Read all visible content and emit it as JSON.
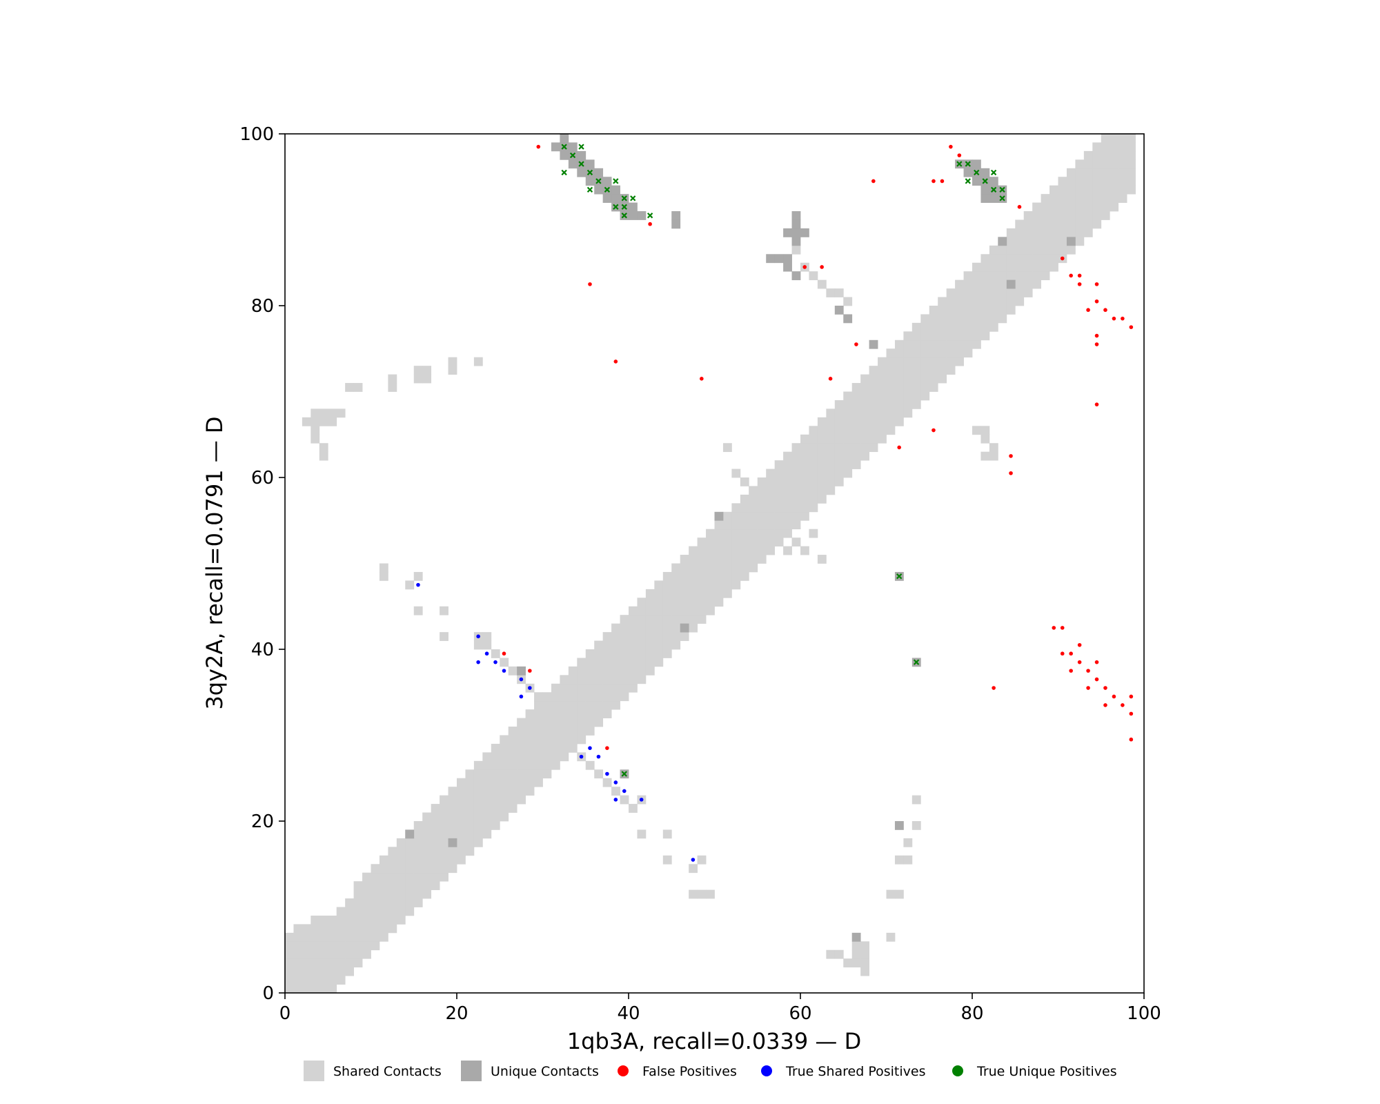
{
  "chart_data": {
    "type": "heatmap",
    "xlabel": "1qb3A, recall=0.0339 — D",
    "ylabel": "3qy2A, recall=0.0791 — D",
    "xlim": [
      0,
      100
    ],
    "ylim": [
      0,
      100
    ],
    "x_ticks": [
      "0",
      "20",
      "40",
      "60",
      "80",
      "100"
    ],
    "y_ticks": [
      "0",
      "20",
      "40",
      "60",
      "80",
      "100"
    ],
    "grid": false,
    "legend_position": "bottom",
    "legend": [
      {
        "label": "Shared Contacts",
        "kind": "square",
        "color": "#d3d3d3"
      },
      {
        "label": "Unique Contacts",
        "kind": "square",
        "color": "#a9a9a9"
      },
      {
        "label": "False Positives",
        "kind": "dot",
        "color": "#ff0000"
      },
      {
        "label": "True Shared Positives",
        "kind": "dot",
        "color": "#0000ff"
      },
      {
        "label": "True Unique Positives",
        "kind": "dot",
        "color": "#008000"
      }
    ],
    "colors": {
      "shared": "#d3d3d3",
      "unique": "#a9a9a9",
      "false_positive": "#ff0000",
      "true_shared": "#0000ff",
      "true_unique": "#008000"
    },
    "diagonal_band": [
      [
        0,
        0,
        6
      ],
      [
        1,
        0,
        7
      ],
      [
        2,
        0,
        7
      ],
      [
        3,
        0,
        8
      ],
      [
        4,
        0,
        8
      ],
      [
        5,
        0,
        8
      ],
      [
        6,
        1,
        9
      ],
      [
        7,
        2,
        10
      ],
      [
        8,
        3,
        12
      ],
      [
        9,
        4,
        13
      ],
      [
        10,
        5,
        14
      ],
      [
        11,
        6,
        15
      ],
      [
        12,
        7,
        16
      ],
      [
        13,
        8,
        17
      ],
      [
        14,
        9,
        18
      ],
      [
        15,
        10,
        19
      ],
      [
        16,
        11,
        20
      ],
      [
        17,
        12,
        21
      ],
      [
        18,
        13,
        22
      ],
      [
        19,
        14,
        23
      ],
      [
        20,
        15,
        24
      ],
      [
        21,
        16,
        25
      ],
      [
        22,
        17,
        26
      ],
      [
        23,
        18,
        27
      ],
      [
        24,
        19,
        28
      ],
      [
        25,
        20,
        29
      ],
      [
        26,
        21,
        30
      ],
      [
        27,
        22,
        31
      ],
      [
        28,
        23,
        32
      ],
      [
        29,
        24,
        33
      ],
      [
        30,
        25,
        34
      ],
      [
        31,
        26,
        35
      ],
      [
        32,
        27,
        36
      ],
      [
        33,
        28,
        37
      ],
      [
        34,
        29,
        38
      ],
      [
        35,
        30,
        39
      ],
      [
        36,
        31,
        40
      ],
      [
        37,
        32,
        41
      ],
      [
        38,
        33,
        42
      ],
      [
        39,
        34,
        43
      ],
      [
        40,
        35,
        44
      ],
      [
        41,
        36,
        45
      ],
      [
        42,
        37,
        46
      ],
      [
        43,
        38,
        47
      ],
      [
        44,
        39,
        48
      ],
      [
        45,
        40,
        49
      ],
      [
        46,
        41,
        50
      ],
      [
        47,
        42,
        51
      ],
      [
        48,
        43,
        52
      ],
      [
        49,
        44,
        53
      ],
      [
        50,
        45,
        54
      ],
      [
        51,
        46,
        55
      ],
      [
        52,
        47,
        56
      ],
      [
        53,
        48,
        57
      ],
      [
        54,
        49,
        58
      ],
      [
        55,
        50,
        59
      ],
      [
        56,
        51,
        60
      ],
      [
        57,
        52,
        61
      ],
      [
        58,
        53,
        62
      ],
      [
        59,
        54,
        63
      ],
      [
        60,
        55,
        64
      ],
      [
        61,
        56,
        65
      ],
      [
        62,
        57,
        66
      ],
      [
        63,
        58,
        67
      ],
      [
        64,
        59,
        68
      ],
      [
        65,
        60,
        69
      ],
      [
        66,
        61,
        70
      ],
      [
        67,
        62,
        71
      ],
      [
        68,
        63,
        72
      ],
      [
        69,
        64,
        73
      ],
      [
        70,
        65,
        74
      ],
      [
        71,
        66,
        75
      ],
      [
        72,
        67,
        76
      ],
      [
        73,
        68,
        77
      ],
      [
        74,
        69,
        78
      ],
      [
        75,
        70,
        79
      ],
      [
        76,
        71,
        80
      ],
      [
        77,
        72,
        81
      ],
      [
        78,
        73,
        82
      ],
      [
        79,
        74,
        83
      ],
      [
        80,
        75,
        84
      ],
      [
        81,
        76,
        85
      ],
      [
        82,
        77,
        86
      ],
      [
        83,
        78,
        87
      ],
      [
        84,
        79,
        88
      ],
      [
        85,
        80,
        89
      ],
      [
        86,
        81,
        90
      ],
      [
        87,
        82,
        91
      ],
      [
        88,
        83,
        92
      ],
      [
        89,
        84,
        93
      ],
      [
        90,
        85,
        94
      ],
      [
        91,
        86,
        95
      ],
      [
        92,
        87,
        96
      ],
      [
        93,
        88,
        97
      ],
      [
        94,
        89,
        98
      ],
      [
        95,
        90,
        99
      ],
      [
        96,
        91,
        99
      ],
      [
        97,
        92,
        99
      ],
      [
        98,
        93,
        99
      ]
    ],
    "shared_cells": [
      [
        2,
        66
      ],
      [
        3,
        66
      ],
      [
        4,
        66
      ],
      [
        5,
        66
      ],
      [
        3,
        67
      ],
      [
        4,
        67
      ],
      [
        5,
        67
      ],
      [
        6,
        67
      ],
      [
        3,
        65
      ],
      [
        3,
        64
      ],
      [
        4,
        63
      ],
      [
        4,
        62
      ],
      [
        7,
        70
      ],
      [
        8,
        70
      ],
      [
        12,
        70
      ],
      [
        12,
        71
      ],
      [
        15,
        71
      ],
      [
        16,
        71
      ],
      [
        15,
        72
      ],
      [
        16,
        72
      ],
      [
        19,
        72
      ],
      [
        19,
        73
      ],
      [
        22,
        73
      ],
      [
        11,
        48
      ],
      [
        11,
        49
      ],
      [
        14,
        47
      ],
      [
        15,
        48
      ],
      [
        15,
        44
      ],
      [
        18,
        44
      ],
      [
        18,
        41
      ],
      [
        22,
        41
      ],
      [
        23,
        41
      ],
      [
        22,
        40
      ],
      [
        23,
        40
      ],
      [
        24,
        39
      ],
      [
        25,
        38
      ],
      [
        26,
        37
      ],
      [
        27,
        36
      ],
      [
        28,
        35
      ],
      [
        29,
        34
      ],
      [
        34,
        27
      ],
      [
        35,
        26
      ],
      [
        36,
        25
      ],
      [
        37,
        24
      ],
      [
        38,
        23
      ],
      [
        39,
        22
      ],
      [
        40,
        21
      ],
      [
        41,
        22
      ],
      [
        41,
        18
      ],
      [
        44,
        18
      ],
      [
        44,
        15
      ],
      [
        47,
        14
      ],
      [
        48,
        15
      ],
      [
        47,
        11
      ],
      [
        48,
        11
      ],
      [
        49,
        11
      ],
      [
        51,
        63
      ],
      [
        52,
        60
      ],
      [
        53,
        59
      ],
      [
        54,
        58
      ],
      [
        58,
        51
      ],
      [
        59,
        52
      ],
      [
        60,
        51
      ],
      [
        61,
        53
      ],
      [
        62,
        50
      ],
      [
        59,
        86
      ],
      [
        60,
        84
      ],
      [
        61,
        83
      ],
      [
        62,
        82
      ],
      [
        63,
        81
      ],
      [
        64,
        81
      ],
      [
        65,
        80
      ],
      [
        78,
        78
      ],
      [
        77,
        79
      ],
      [
        80,
        65
      ],
      [
        81,
        65
      ],
      [
        81,
        64
      ],
      [
        82,
        63
      ],
      [
        81,
        62
      ],
      [
        82,
        62
      ],
      [
        63,
        4
      ],
      [
        64,
        4
      ],
      [
        65,
        3
      ],
      [
        66,
        3
      ],
      [
        66,
        4
      ],
      [
        66,
        5
      ],
      [
        67,
        2
      ],
      [
        67,
        3
      ],
      [
        67,
        4
      ],
      [
        67,
        5
      ],
      [
        70,
        11
      ],
      [
        71,
        11
      ],
      [
        70,
        6
      ],
      [
        71,
        15
      ],
      [
        72,
        15
      ],
      [
        72,
        17
      ],
      [
        73,
        19
      ],
      [
        73,
        22
      ]
    ],
    "unique_cells": [
      [
        31,
        98
      ],
      [
        32,
        98
      ],
      [
        33,
        98
      ],
      [
        32,
        97
      ],
      [
        33,
        97
      ],
      [
        34,
        97
      ],
      [
        33,
        96
      ],
      [
        34,
        96
      ],
      [
        35,
        96
      ],
      [
        34,
        95
      ],
      [
        35,
        95
      ],
      [
        36,
        95
      ],
      [
        35,
        94
      ],
      [
        36,
        94
      ],
      [
        37,
        94
      ],
      [
        36,
        93
      ],
      [
        37,
        93
      ],
      [
        38,
        93
      ],
      [
        37,
        92
      ],
      [
        38,
        92
      ],
      [
        39,
        92
      ],
      [
        38,
        91
      ],
      [
        39,
        91
      ],
      [
        40,
        91
      ],
      [
        39,
        90
      ],
      [
        40,
        90
      ],
      [
        41,
        90
      ],
      [
        32,
        99
      ],
      [
        45,
        89
      ],
      [
        45,
        90
      ],
      [
        78,
        96
      ],
      [
        79,
        96
      ],
      [
        80,
        96
      ],
      [
        79,
        95
      ],
      [
        80,
        95
      ],
      [
        81,
        95
      ],
      [
        80,
        94
      ],
      [
        81,
        94
      ],
      [
        82,
        94
      ],
      [
        81,
        93
      ],
      [
        82,
        93
      ],
      [
        83,
        93
      ],
      [
        81,
        92
      ],
      [
        82,
        92
      ],
      [
        83,
        92
      ],
      [
        58,
        88
      ],
      [
        59,
        88
      ],
      [
        60,
        88
      ],
      [
        59,
        89
      ],
      [
        59,
        87
      ],
      [
        59,
        90
      ],
      [
        56,
        85
      ],
      [
        57,
        85
      ],
      [
        58,
        85
      ],
      [
        58,
        84
      ],
      [
        59,
        83
      ],
      [
        64,
        79
      ],
      [
        65,
        78
      ],
      [
        68,
        75
      ],
      [
        84,
        82
      ],
      [
        83,
        87
      ],
      [
        91,
        87
      ],
      [
        50,
        55
      ],
      [
        46,
        42
      ],
      [
        14,
        18
      ],
      [
        19,
        17
      ],
      [
        27,
        37
      ],
      [
        39,
        25
      ],
      [
        71,
        48
      ],
      [
        73,
        38
      ],
      [
        71,
        19
      ],
      [
        66,
        6
      ]
    ],
    "false_positives": [
      [
        29,
        98
      ],
      [
        42,
        89
      ],
      [
        35,
        82
      ],
      [
        38,
        73
      ],
      [
        48,
        71
      ],
      [
        77,
        98
      ],
      [
        78,
        97
      ],
      [
        75,
        94
      ],
      [
        76,
        94
      ],
      [
        68,
        94
      ],
      [
        85,
        91
      ],
      [
        60,
        84
      ],
      [
        62,
        84
      ],
      [
        66,
        75
      ],
      [
        63,
        71
      ],
      [
        71,
        63
      ],
      [
        75,
        65
      ],
      [
        84,
        62
      ],
      [
        84,
        60
      ],
      [
        90,
        85
      ],
      [
        91,
        83
      ],
      [
        92,
        83
      ],
      [
        92,
        82
      ],
      [
        94,
        82
      ],
      [
        93,
        79
      ],
      [
        94,
        80
      ],
      [
        95,
        79
      ],
      [
        96,
        78
      ],
      [
        97,
        78
      ],
      [
        98,
        77
      ],
      [
        94,
        76
      ],
      [
        94,
        75
      ],
      [
        94,
        68
      ],
      [
        89,
        42
      ],
      [
        90,
        42
      ],
      [
        90,
        39
      ],
      [
        91,
        39
      ],
      [
        92,
        40
      ],
      [
        92,
        38
      ],
      [
        93,
        37
      ],
      [
        94,
        38
      ],
      [
        91,
        37
      ],
      [
        94,
        36
      ],
      [
        93,
        35
      ],
      [
        95,
        35
      ],
      [
        96,
        34
      ],
      [
        95,
        33
      ],
      [
        97,
        33
      ],
      [
        98,
        34
      ],
      [
        98,
        32
      ],
      [
        98,
        29
      ],
      [
        82,
        35
      ],
      [
        25,
        39
      ],
      [
        28,
        37
      ],
      [
        37,
        28
      ]
    ],
    "true_shared_positives": [
      [
        15,
        47
      ],
      [
        22,
        41
      ],
      [
        22,
        38
      ],
      [
        23,
        39
      ],
      [
        24,
        38
      ],
      [
        25,
        37
      ],
      [
        27,
        36
      ],
      [
        28,
        35
      ],
      [
        27,
        34
      ],
      [
        34,
        27
      ],
      [
        35,
        28
      ],
      [
        36,
        27
      ],
      [
        37,
        25
      ],
      [
        38,
        24
      ],
      [
        39,
        23
      ],
      [
        38,
        22
      ],
      [
        41,
        22
      ],
      [
        47,
        15
      ]
    ],
    "true_unique_positives": [
      [
        32,
        98
      ],
      [
        34,
        98
      ],
      [
        33,
        97
      ],
      [
        34,
        96
      ],
      [
        32,
        95
      ],
      [
        35,
        95
      ],
      [
        36,
        94
      ],
      [
        38,
        94
      ],
      [
        35,
        93
      ],
      [
        37,
        93
      ],
      [
        39,
        92
      ],
      [
        40,
        92
      ],
      [
        38,
        91
      ],
      [
        39,
        91
      ],
      [
        39,
        90
      ],
      [
        42,
        90
      ],
      [
        78,
        96
      ],
      [
        79,
        96
      ],
      [
        80,
        95
      ],
      [
        82,
        95
      ],
      [
        79,
        94
      ],
      [
        81,
        94
      ],
      [
        82,
        93
      ],
      [
        83,
        93
      ],
      [
        83,
        92
      ],
      [
        71,
        48
      ],
      [
        73,
        38
      ],
      [
        39,
        25
      ]
    ]
  }
}
